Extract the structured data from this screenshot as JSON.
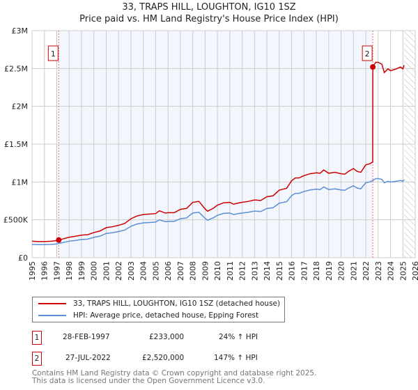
{
  "title": "33, TRAPS HILL, LOUGHTON, IG10 1SZ",
  "subtitle": "Price paid vs. HM Land Registry's House Price Index (HPI)",
  "chart_data": {
    "type": "line",
    "title": "33, TRAPS HILL, LOUGHTON, IG10 1SZ",
    "subtitle": "Price paid vs. HM Land Registry's House Price Index (HPI)",
    "xlim": [
      1995,
      2026
    ],
    "ylim": [
      0,
      3000000
    ],
    "grid": true,
    "x_ticks": [
      "1995",
      "1996",
      "1997",
      "1998",
      "1999",
      "2000",
      "2001",
      "2002",
      "2003",
      "2004",
      "2005",
      "2006",
      "2007",
      "2008",
      "2009",
      "2010",
      "2011",
      "2012",
      "2013",
      "2014",
      "2015",
      "2016",
      "2017",
      "2018",
      "2019",
      "2020",
      "2021",
      "2022",
      "2023",
      "2024",
      "2025",
      "2026"
    ],
    "y_ticks": [
      {
        "v": 0,
        "label": "£0"
      },
      {
        "v": 500000,
        "label": "£500K"
      },
      {
        "v": 1000000,
        "label": "£1M"
      },
      {
        "v": 1500000,
        "label": "£1.5M"
      },
      {
        "v": 2000000,
        "label": "£2M"
      },
      {
        "v": 2500000,
        "label": "£2.5M"
      },
      {
        "v": 3000000,
        "label": "£3M"
      }
    ],
    "hpi_series": {
      "name": "HPI: Average price, detached house, Epping Forest",
      "color": "#5b8fd6",
      "x": [
        1995,
        1995.5,
        1996,
        1996.5,
        1997,
        1997.16,
        1997.5,
        1998,
        1998.5,
        1999,
        1999.5,
        2000,
        2000.5,
        2001,
        2001.5,
        2002,
        2002.5,
        2003,
        2003.5,
        2004,
        2004.5,
        2005,
        2005.3,
        2005.8,
        2006,
        2006.5,
        2007,
        2007.5,
        2008,
        2008.5,
        2009,
        2009.2,
        2009.7,
        2010,
        2010.5,
        2011,
        2011.3,
        2011.6,
        2012,
        2012.5,
        2013,
        2013.5,
        2014,
        2014.5,
        2015,
        2015.3,
        2015.6,
        2016,
        2016.3,
        2016.6,
        2017,
        2017.5,
        2018,
        2018.3,
        2018.6,
        2019,
        2019.5,
        2020,
        2020.3,
        2020.6,
        2021,
        2021.3,
        2021.6,
        2022,
        2022.3,
        2022.57,
        2022.8,
        2023,
        2023.3,
        2023.5,
        2023.8,
        2024,
        2024.5,
        2024.8,
        2025,
        2025.1
      ],
      "y": [
        175000,
        172000,
        172000,
        175000,
        182000,
        188000,
        200000,
        218000,
        228000,
        240000,
        245000,
        268000,
        285000,
        320000,
        330000,
        345000,
        365000,
        415000,
        445000,
        460000,
        465000,
        470000,
        500000,
        475000,
        480000,
        480000,
        515000,
        525000,
        590000,
        600000,
        520000,
        495000,
        530000,
        560000,
        585000,
        590000,
        570000,
        580000,
        590000,
        600000,
        615000,
        610000,
        650000,
        660000,
        720000,
        730000,
        740000,
        820000,
        850000,
        850000,
        875000,
        895000,
        905000,
        900000,
        935000,
        900000,
        910000,
        895000,
        890000,
        920000,
        950000,
        920000,
        910000,
        990000,
        1000000,
        1020000,
        1045000,
        1045000,
        1035000,
        990000,
        1010000,
        1000000,
        1010000,
        1020000,
        1010000,
        1030000
      ]
    },
    "property_series": {
      "name": "33, TRAPS HILL, LOUGHTON, IG10 1SZ (detached house)",
      "color": "#cc0000"
    },
    "sales": [
      {
        "id": "1",
        "x": 1997.16,
        "date": "28-FEB-1997",
        "price": 233000,
        "price_label": "£233,000",
        "hpi_change": "24% ↑ HPI"
      },
      {
        "id": "2",
        "x": 2022.57,
        "date": "27-JUL-2022",
        "price": 2520000,
        "price_label": "£2,520,000",
        "hpi_change": "147% ↑ HPI"
      }
    ],
    "forecast_start": 2025.1
  },
  "legend": {
    "property": "33, TRAPS HILL, LOUGHTON, IG10 1SZ (detached house)",
    "hpi": "HPI: Average price, detached house, Epping Forest"
  },
  "footer": {
    "line1": "Contains HM Land Registry data © Crown copyright and database right 2025.",
    "line2": "This data is licensed under the Open Government Licence v3.0."
  }
}
